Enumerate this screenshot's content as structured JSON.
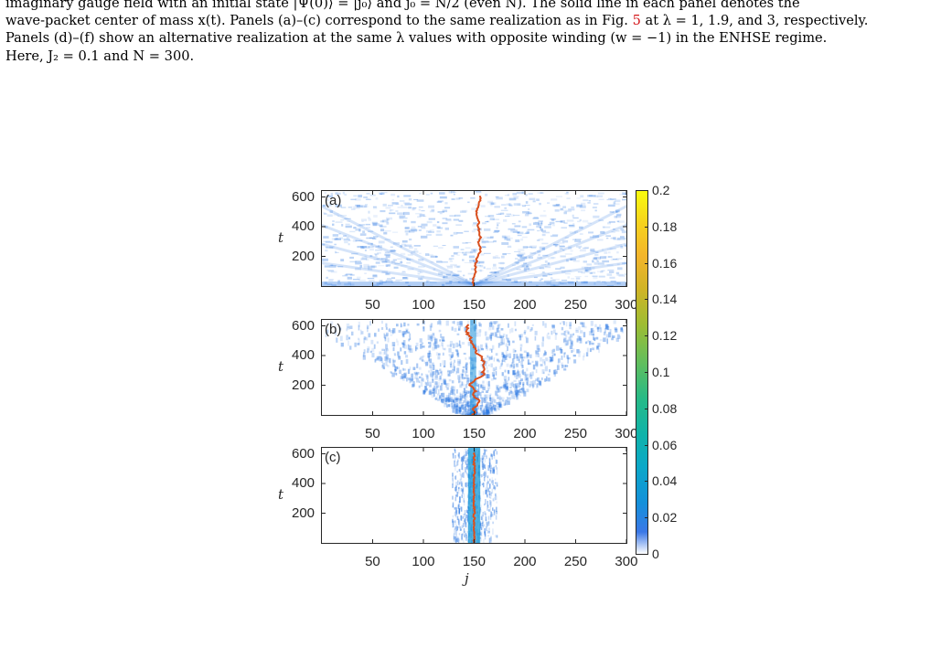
{
  "caption": {
    "line1_a": "imaginary gauge field with an initial state |Ψ(0)⟩ = |j₀⟩ and j₀ = N/2 (even N). The solid line in each panel denotes the",
    "line2_a": "wave-packet center of mass x(t). Panels (a)–(c) correspond to the same realization as in Fig. ",
    "line2_ref": "5",
    "line2_b": " at λ = 1, 1.9, and 3, respectively.",
    "line3": "Panels (d)–(f) show an alternative realization at the same λ values with opposite winding (w = −1) in the ENHSE regime.",
    "line4": "Here, J₂ = 0.1 and N = 300."
  },
  "figure": {
    "xlabel": "j",
    "ylabel": "t",
    "x_ticks": [
      "50",
      "100",
      "150",
      "200",
      "250",
      "300"
    ],
    "y_ticks": [
      "600",
      "400",
      "200"
    ],
    "panels": [
      {
        "label": "(a)",
        "lambda": 1
      },
      {
        "label": "(b)",
        "lambda": 1.9
      },
      {
        "label": "(c)",
        "lambda": 3
      }
    ],
    "colorbar_ticks": [
      "0.2",
      "0.18",
      "0.16",
      "0.14",
      "0.12",
      "0.1",
      "0.08",
      "0.06",
      "0.04",
      "0.02",
      "0"
    ],
    "colors": {
      "trajectory": "#d9501f",
      "density": "#1f6fe0",
      "axis": "#262626"
    }
  }
}
